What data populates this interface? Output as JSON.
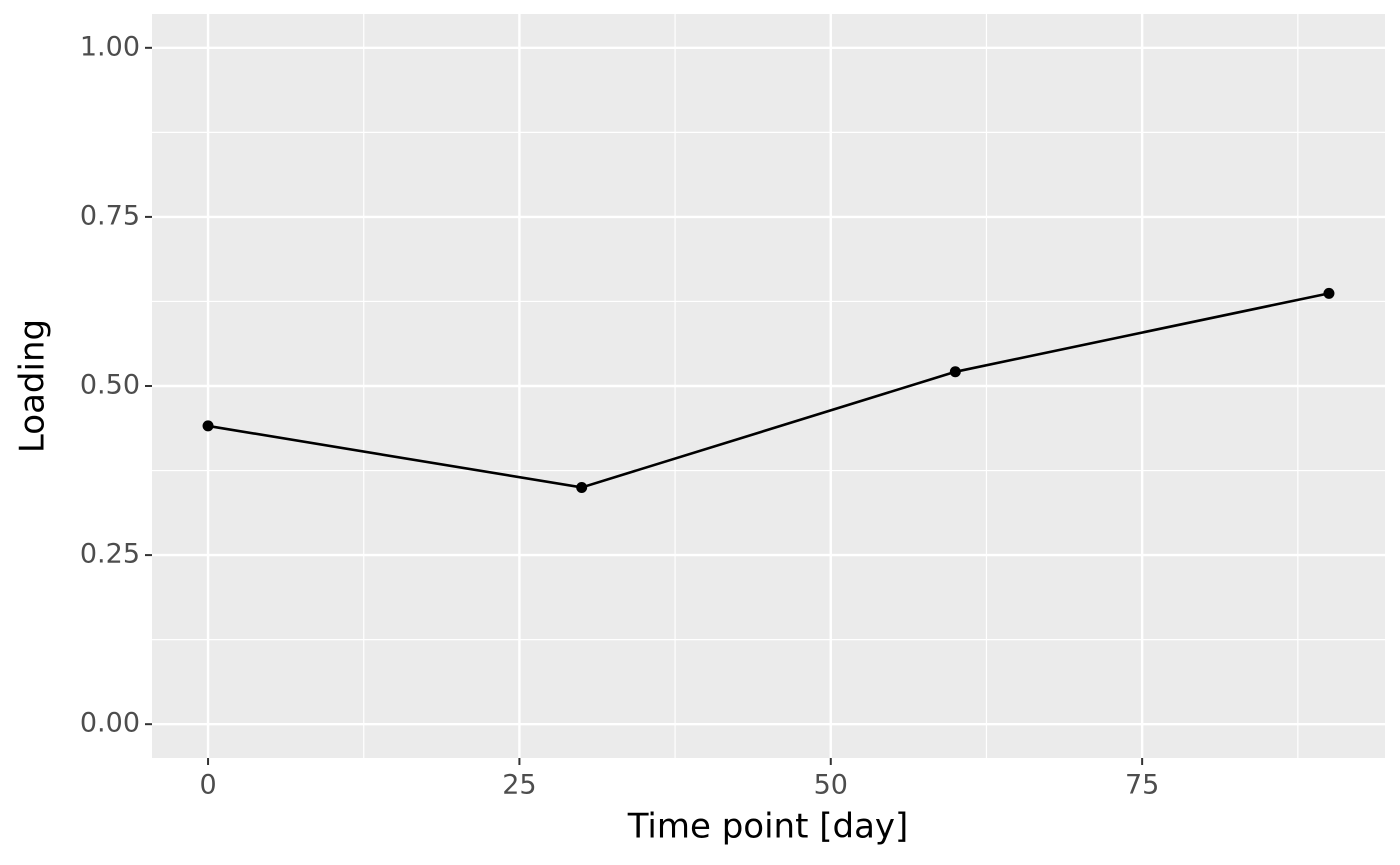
{
  "chart_data": {
    "type": "line",
    "x_label": "Time point [day]",
    "y_label": "Loading",
    "x": [
      0,
      30,
      60,
      90
    ],
    "series": [
      {
        "name": "Loading",
        "color": "#000000",
        "values": [
          0.441,
          0.35,
          0.521,
          0.637
        ]
      }
    ],
    "xlim": [
      -4.5,
      94.5
    ],
    "xticks": [
      0,
      25,
      50,
      75
    ],
    "xminor_ticks": [
      12.5,
      37.5,
      62.5,
      87.5
    ],
    "ylim": [
      -0.05,
      1.05
    ],
    "yticks": [
      {
        "value": 0,
        "label": "0.00"
      },
      {
        "value": 0.25,
        "label": "0.25"
      },
      {
        "value": 0.5,
        "label": "0.50"
      },
      {
        "value": 0.75,
        "label": "0.75"
      },
      {
        "value": 1,
        "label": "1.00"
      }
    ],
    "yminor_ticks": [
      0.125,
      0.375,
      0.625,
      0.875
    ],
    "grid": true,
    "panel_color": "#EBEBEB"
  }
}
